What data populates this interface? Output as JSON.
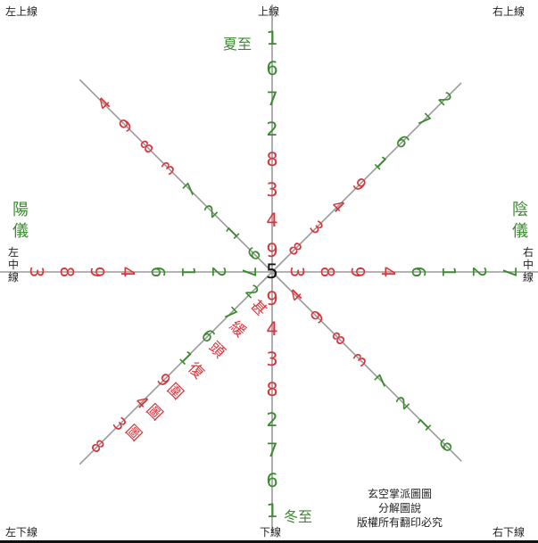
{
  "labels": {
    "top_left": "左上線",
    "top_center": "上線",
    "top_right": "右上線",
    "bottom_left": "左下線",
    "bottom_center": "下線",
    "bottom_right": "右下線",
    "left_middle": [
      "左",
      "中",
      "線"
    ],
    "right_middle": [
      "右",
      "中",
      "線"
    ],
    "yang_yi": [
      "陽",
      "儀"
    ],
    "yin_yi": [
      "陰",
      "儀"
    ],
    "summer_solstice": "夏至",
    "winter_solstice": "冬至",
    "center": "5",
    "credit": [
      "玄空掌派圖圖",
      "分解圖說",
      "版權所有翻印必究"
    ]
  },
  "colors": {
    "red": "#d8343a",
    "green": "#3a8a2e",
    "line": "#9a9a9a",
    "text": "#222222"
  },
  "arms": {
    "up": [
      {
        "t": "9",
        "c": "red"
      },
      {
        "t": "4",
        "c": "red"
      },
      {
        "t": "3",
        "c": "red"
      },
      {
        "t": "8",
        "c": "red"
      },
      {
        "t": "2",
        "c": "green"
      },
      {
        "t": "7",
        "c": "green"
      },
      {
        "t": "6",
        "c": "green"
      },
      {
        "t": "1",
        "c": "green"
      }
    ],
    "down": [
      {
        "t": "9",
        "c": "red"
      },
      {
        "t": "4",
        "c": "red"
      },
      {
        "t": "3",
        "c": "red"
      },
      {
        "t": "8",
        "c": "red"
      },
      {
        "t": "2",
        "c": "green"
      },
      {
        "t": "7",
        "c": "green"
      },
      {
        "t": "6",
        "c": "green"
      },
      {
        "t": "1",
        "c": "green"
      }
    ],
    "left": [
      {
        "t": "7",
        "c": "green"
      },
      {
        "t": "2",
        "c": "green"
      },
      {
        "t": "1",
        "c": "green"
      },
      {
        "t": "6",
        "c": "green"
      },
      {
        "t": "4",
        "c": "red"
      },
      {
        "t": "9",
        "c": "red"
      },
      {
        "t": "8",
        "c": "red"
      },
      {
        "t": "3",
        "c": "red"
      }
    ],
    "right": [
      {
        "t": "3",
        "c": "red"
      },
      {
        "t": "8",
        "c": "red"
      },
      {
        "t": "9",
        "c": "red"
      },
      {
        "t": "4",
        "c": "red"
      },
      {
        "t": "6",
        "c": "green"
      },
      {
        "t": "1",
        "c": "green"
      },
      {
        "t": "2",
        "c": "green"
      },
      {
        "t": "7",
        "c": "green"
      }
    ],
    "upper_left": [
      {
        "t": "6",
        "c": "green"
      },
      {
        "t": "1",
        "c": "green"
      },
      {
        "t": "2",
        "c": "green"
      },
      {
        "t": "7",
        "c": "green"
      },
      {
        "t": "3",
        "c": "red"
      },
      {
        "t": "8",
        "c": "red"
      },
      {
        "t": "9",
        "c": "red"
      },
      {
        "t": "4",
        "c": "red"
      }
    ],
    "upper_right": [
      {
        "t": "8",
        "c": "red"
      },
      {
        "t": "3",
        "c": "red"
      },
      {
        "t": "4",
        "c": "red"
      },
      {
        "t": "9",
        "c": "red"
      },
      {
        "t": "1",
        "c": "green"
      },
      {
        "t": "6",
        "c": "green"
      },
      {
        "t": "7",
        "c": "green"
      },
      {
        "t": "2",
        "c": "green"
      }
    ],
    "lower_left": [
      {
        "t": "2",
        "c": "green"
      },
      {
        "t": "7",
        "c": "green"
      },
      {
        "t": "6",
        "c": "green"
      },
      {
        "t": "1",
        "c": "green"
      },
      {
        "t": "9",
        "c": "red"
      },
      {
        "t": "4",
        "c": "red"
      },
      {
        "t": "3",
        "c": "red"
      },
      {
        "t": "8",
        "c": "red"
      }
    ],
    "lower_right": [
      {
        "t": "4",
        "c": "red"
      },
      {
        "t": "9",
        "c": "red"
      },
      {
        "t": "8",
        "c": "red"
      },
      {
        "t": "3",
        "c": "red"
      },
      {
        "t": "7",
        "c": "green"
      },
      {
        "t": "2",
        "c": "green"
      },
      {
        "t": "1",
        "c": "green"
      },
      {
        "t": "6",
        "c": "green"
      }
    ]
  },
  "lower_left_annotations": [
    {
      "t": "甚",
      "c": "red"
    },
    {
      "t": "緩",
      "c": "red"
    },
    {
      "t": "頭",
      "c": "red"
    },
    {
      "t": "復",
      "c": "red"
    },
    {
      "t": "圍",
      "c": "red"
    },
    {
      "t": "圖",
      "c": "red"
    },
    {
      "t": "圖",
      "c": "red"
    }
  ]
}
